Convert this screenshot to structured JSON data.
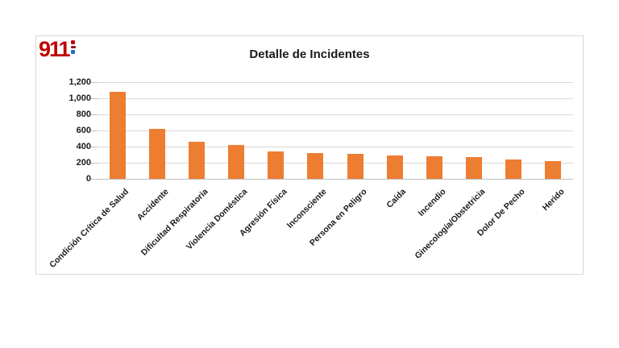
{
  "logo": {
    "text": "911",
    "color": "#c00000",
    "dot_top_color": "#c00000",
    "dot_bottom_color": "#1f6fc5"
  },
  "chart_data": {
    "type": "bar",
    "title": "Detalle de Incidentes",
    "categories": [
      "Condición Crítica de Salud",
      "Accidente",
      "Dificultad Respiratoria",
      "Violencia Doméstica",
      "Agresión Física",
      "Inconsciente",
      "Persona en Peligro",
      "Caída",
      "Incendio",
      "Ginecología/Obstetricia",
      "Dolor De Pecho",
      "Herido"
    ],
    "values": [
      1080,
      620,
      460,
      420,
      340,
      325,
      315,
      290,
      285,
      275,
      245,
      220
    ],
    "xlabel": "",
    "ylabel": "",
    "ylim": [
      0,
      1200
    ],
    "ytick_step": 200,
    "ytick_labels": [
      "0",
      "200",
      "400",
      "600",
      "800",
      "1,000",
      "1,200"
    ],
    "grid": true,
    "legend": "none",
    "bar_color": "#ed7d31",
    "gridline_color": "#d9d9d9",
    "axis_line_color": "#bfbfbf"
  }
}
